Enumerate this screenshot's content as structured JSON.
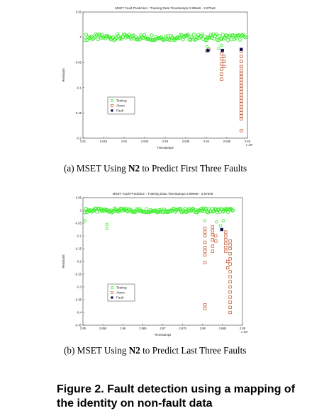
{
  "chart_data": [
    {
      "type": "scatter",
      "title": "MSET Fault Prediction : Training Data Timestamps 2.895e8 - 2.875e8",
      "xlabel": "Timestamps",
      "ylabel": "Residuals",
      "x_exponent": "x 10⁸",
      "xlim": [
        2.61,
        2.65
      ],
      "ylim": [
        -0.2,
        0.05
      ],
      "xticks": [
        "2.61",
        "2.615",
        "2.62",
        "2.625",
        "2.63",
        "2.635",
        "2.64",
        "2.645",
        "2.65"
      ],
      "yticks": [
        "0.05",
        "0",
        "-0.05",
        "-0.1",
        "-0.15",
        "-0.2"
      ],
      "legend": [
        "Testing",
        "Alarm",
        "Fault"
      ],
      "legend_position": "lower-left",
      "series": [
        {
          "name": "Testing",
          "band": {
            "x_start": 2.6105,
            "x_end": 2.6495,
            "y_center": 0.0,
            "y_halfwidth": 0.006
          },
          "outliers": [
            {
              "x": 2.6402,
              "y": -0.019
            },
            {
              "x": 2.643,
              "y": -0.022
            },
            {
              "x": 2.6437,
              "y": -0.016
            }
          ]
        },
        {
          "name": "Alarm",
          "points": [
            {
              "x": 2.6401,
              "y": -0.027
            },
            {
              "x": 2.6406,
              "y": -0.024
            },
            {
              "x": 2.6437,
              "y": -0.033
            },
            {
              "x": 2.6437,
              "y": -0.043
            },
            {
              "x": 2.6437,
              "y": -0.053
            },
            {
              "x": 2.6437,
              "y": -0.063
            },
            {
              "x": 2.6437,
              "y": -0.073
            },
            {
              "x": 2.6437,
              "y": -0.083
            },
            {
              "x": 2.6443,
              "y": -0.038
            },
            {
              "x": 2.6443,
              "y": -0.048
            },
            {
              "x": 2.6443,
              "y": -0.058
            },
            {
              "x": 2.6485,
              "y": -0.028
            },
            {
              "x": 2.6485,
              "y": -0.038
            },
            {
              "x": 2.6485,
              "y": -0.048
            },
            {
              "x": 2.6485,
              "y": -0.058
            },
            {
              "x": 2.6485,
              "y": -0.066
            },
            {
              "x": 2.6485,
              "y": -0.072
            },
            {
              "x": 2.6485,
              "y": -0.078
            },
            {
              "x": 2.6485,
              "y": -0.084
            },
            {
              "x": 2.6485,
              "y": -0.09
            },
            {
              "x": 2.6485,
              "y": -0.096
            },
            {
              "x": 2.6485,
              "y": -0.102
            },
            {
              "x": 2.6485,
              "y": -0.108
            },
            {
              "x": 2.6485,
              "y": -0.114
            },
            {
              "x": 2.6485,
              "y": -0.12
            },
            {
              "x": 2.6485,
              "y": -0.126
            },
            {
              "x": 2.6485,
              "y": -0.132
            },
            {
              "x": 2.6485,
              "y": -0.138
            },
            {
              "x": 2.6485,
              "y": -0.144
            },
            {
              "x": 2.6485,
              "y": -0.15
            },
            {
              "x": 2.6485,
              "y": -0.156
            },
            {
              "x": 2.6485,
              "y": -0.162
            },
            {
              "x": 2.6485,
              "y": -0.185
            }
          ]
        },
        {
          "name": "Fault",
          "points": [
            {
              "x": 2.6404,
              "y": -0.026
            },
            {
              "x": 2.6439,
              "y": -0.026
            },
            {
              "x": 2.6485,
              "y": -0.024
            }
          ]
        }
      ]
    },
    {
      "type": "scatter",
      "title": "MSET Fault Prediction : Training Data Timestamps 2.895e8 - 2.875e8",
      "xlabel": "Timestamps",
      "ylabel": "Residuals",
      "x_exponent": "x 10⁸",
      "xlim": [
        2.85,
        2.89
      ],
      "ylim": [
        -0.45,
        0.05
      ],
      "xticks": [
        "2.85",
        "2.855",
        "2.86",
        "2.865",
        "2.87",
        "2.875",
        "2.88",
        "2.885",
        "2.89"
      ],
      "yticks": [
        "0.05",
        "0",
        "-0.05",
        "-0.1",
        "-0.15",
        "-0.2",
        "-0.25",
        "-0.3",
        "-0.35",
        "-0.4",
        "-0.45"
      ],
      "legend": [
        "Testing",
        "Alarm",
        "Fault"
      ],
      "legend_position": "lower-left",
      "series": [
        {
          "name": "Testing",
          "band": {
            "x_start": 2.8505,
            "x_end": 2.8876,
            "y_center": 0.0,
            "y_halfwidth": 0.008
          },
          "outliers": [
            {
              "x": 2.8505,
              "y": -0.04
            },
            {
              "x": 2.856,
              "y": -0.07
            },
            {
              "x": 2.856,
              "y": -0.055
            },
            {
              "x": 2.8805,
              "y": -0.04
            },
            {
              "x": 2.8835,
              "y": -0.045
            },
            {
              "x": 2.8845,
              "y": -0.06
            },
            {
              "x": 2.8852,
              "y": -0.04
            }
          ]
        },
        {
          "name": "Alarm",
          "points": [
            {
              "x": 2.8806,
              "y": -0.07
            },
            {
              "x": 2.8806,
              "y": -0.085
            },
            {
              "x": 2.8806,
              "y": -0.1
            },
            {
              "x": 2.8806,
              "y": -0.125
            },
            {
              "x": 2.8806,
              "y": -0.145
            },
            {
              "x": 2.8806,
              "y": -0.16
            },
            {
              "x": 2.8806,
              "y": -0.175
            },
            {
              "x": 2.8806,
              "y": -0.205
            },
            {
              "x": 2.8806,
              "y": -0.37
            },
            {
              "x": 2.8806,
              "y": -0.385
            },
            {
              "x": 2.8825,
              "y": -0.065
            },
            {
              "x": 2.8825,
              "y": -0.08
            },
            {
              "x": 2.8825,
              "y": -0.095
            },
            {
              "x": 2.8825,
              "y": -0.115
            },
            {
              "x": 2.8825,
              "y": -0.14
            },
            {
              "x": 2.8825,
              "y": -0.16
            },
            {
              "x": 2.8833,
              "y": -0.1
            },
            {
              "x": 2.8833,
              "y": -0.12
            },
            {
              "x": 2.8858,
              "y": -0.085
            },
            {
              "x": 2.8858,
              "y": -0.1
            },
            {
              "x": 2.8858,
              "y": -0.115
            },
            {
              "x": 2.8858,
              "y": -0.13
            },
            {
              "x": 2.8858,
              "y": -0.145
            },
            {
              "x": 2.8858,
              "y": -0.16
            },
            {
              "x": 2.8863,
              "y": -0.2
            },
            {
              "x": 2.8863,
              "y": -0.225
            },
            {
              "x": 2.8869,
              "y": -0.12
            },
            {
              "x": 2.8869,
              "y": -0.135
            },
            {
              "x": 2.8869,
              "y": -0.15
            },
            {
              "x": 2.8869,
              "y": -0.17
            },
            {
              "x": 2.8869,
              "y": -0.19
            },
            {
              "x": 2.8869,
              "y": -0.21
            },
            {
              "x": 2.8869,
              "y": -0.24
            },
            {
              "x": 2.8869,
              "y": -0.26
            },
            {
              "x": 2.8869,
              "y": -0.28
            },
            {
              "x": 2.8869,
              "y": -0.3
            },
            {
              "x": 2.8869,
              "y": -0.32
            },
            {
              "x": 2.8869,
              "y": -0.34
            },
            {
              "x": 2.8869,
              "y": -0.36
            },
            {
              "x": 2.8869,
              "y": -0.38
            },
            {
              "x": 2.8869,
              "y": -0.4
            }
          ]
        },
        {
          "name": "Fault",
          "points": [
            {
              "x": 2.8848,
              "y": -0.075
            }
          ]
        }
      ]
    }
  ],
  "captions": {
    "a": {
      "prefix": "(a)  MSET  Using ",
      "bold": "N2",
      "suffix": " to  Predict  First  Three Faults"
    },
    "b": {
      "prefix": "(b)  MSET  Using  ",
      "bold": "N2",
      "suffix": "  to  Predict  Last  Three Faults"
    },
    "figure": "Figure 2. Fault detection using a mapping of the identity on non-fault data"
  }
}
